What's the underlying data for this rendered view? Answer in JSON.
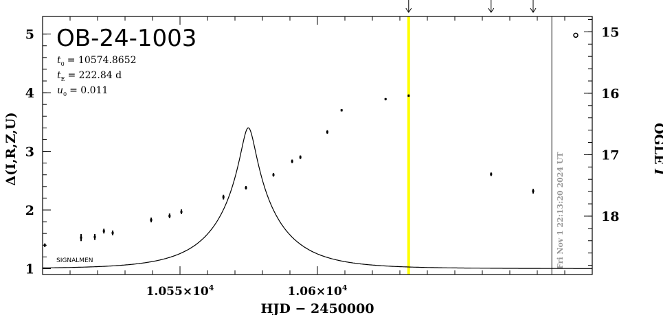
{
  "chart_data": {
    "type": "scatter",
    "title": "OB-24-1003",
    "params": [
      {
        "name": "t",
        "sub": "0",
        "value": "= 10574.8652"
      },
      {
        "name": "t",
        "sub": "E",
        "value": "= 222.84 d"
      },
      {
        "name": "u",
        "sub": "0",
        "value": "= 0.011"
      }
    ],
    "xlabel": "HJD − 2450000",
    "ylabel_left": "Δ(I,R,Z,U)",
    "ylabel_right_prefix": "OGLE ",
    "ylabel_right_suffix": "I",
    "xlim": [
      10500,
      10700
    ],
    "ylim_left": [
      0.9,
      5.3
    ],
    "ylim_right": [
      18.95,
      14.75
    ],
    "x_ticks": [
      {
        "value": 10550,
        "mantissa": "1.055×10",
        "exp": "4"
      },
      {
        "value": 10600,
        "mantissa": "1.06×10",
        "exp": "4"
      }
    ],
    "y_ticks_left": [
      {
        "value": 1,
        "label": "1"
      },
      {
        "value": 2,
        "label": "2"
      },
      {
        "value": 3,
        "label": "3"
      },
      {
        "value": 4,
        "label": "4"
      },
      {
        "value": 5,
        "label": "5"
      }
    ],
    "y_ticks_right": [
      {
        "value": 15,
        "label": "15"
      },
      {
        "value": 16,
        "label": "16"
      },
      {
        "value": 17,
        "label": "17"
      },
      {
        "value": 18,
        "label": "18"
      }
    ],
    "model": {
      "t0": 10574.8652,
      "tE": 222.84,
      "u0": 0.011
    },
    "points": [
      {
        "x": 10500.8,
        "y": 1.4,
        "err": 0.03
      },
      {
        "x": 10514.0,
        "y": 1.53,
        "err": 0.06
      },
      {
        "x": 10519.0,
        "y": 1.54,
        "err": 0.05
      },
      {
        "x": 10522.3,
        "y": 1.64,
        "err": 0.04
      },
      {
        "x": 10525.5,
        "y": 1.61,
        "err": 0.04
      },
      {
        "x": 10539.5,
        "y": 1.83,
        "err": 0.04
      },
      {
        "x": 10546.2,
        "y": 1.9,
        "err": 0.04
      },
      {
        "x": 10550.5,
        "y": 1.97,
        "err": 0.04
      },
      {
        "x": 10565.8,
        "y": 2.22,
        "err": 0.04
      },
      {
        "x": 10574.0,
        "y": 2.38,
        "err": 0.03
      },
      {
        "x": 10584.0,
        "y": 2.6,
        "err": 0.03
      },
      {
        "x": 10590.8,
        "y": 2.83,
        "err": 0.03
      },
      {
        "x": 10593.8,
        "y": 2.9,
        "err": 0.03
      },
      {
        "x": 10603.6,
        "y": 3.33,
        "err": 0.03
      },
      {
        "x": 10608.8,
        "y": 3.7,
        "err": 0.02
      },
      {
        "x": 10624.8,
        "y": 3.89,
        "err": 0.02
      },
      {
        "x": 10633.2,
        "y": 3.95,
        "err": 0.02
      },
      {
        "x": 10663.2,
        "y": 2.61,
        "err": 0.03
      },
      {
        "x": 10678.5,
        "y": 2.32,
        "err": 0.04
      }
    ],
    "open_points": [
      {
        "x": 10694.0,
        "y": 4.98
      }
    ],
    "highlight_x": 10633.2,
    "highlight_color": "#ffff00",
    "now_line": {
      "x": 10685.3,
      "label": "Fri Nov  1 22:13:20 2024 UT",
      "color": "#999999"
    },
    "arrows_x": [
      10633.2,
      10663.2,
      10678.5
    ],
    "corner_label": "SIGNALMEN"
  }
}
